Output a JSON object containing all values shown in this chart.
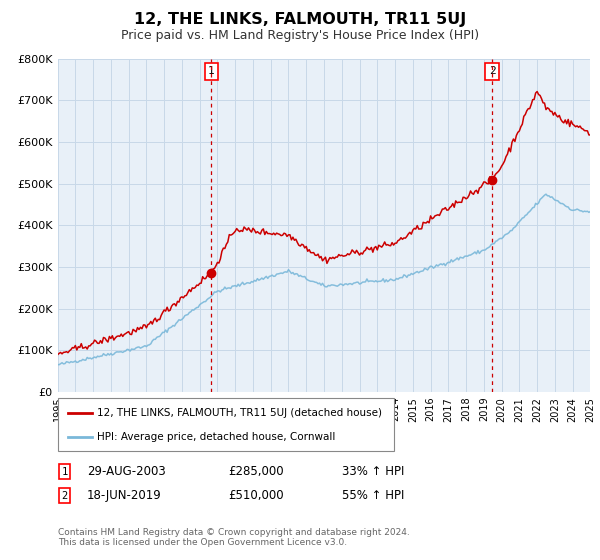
{
  "title": "12, THE LINKS, FALMOUTH, TR11 5UJ",
  "subtitle": "Price paid vs. HM Land Registry's House Price Index (HPI)",
  "footer": "Contains HM Land Registry data © Crown copyright and database right 2024.\nThis data is licensed under the Open Government Licence v3.0.",
  "legend_line1": "12, THE LINKS, FALMOUTH, TR11 5UJ (detached house)",
  "legend_line2": "HPI: Average price, detached house, Cornwall",
  "transaction1_date": "29-AUG-2003",
  "transaction1_price": 285000,
  "transaction1_pct": "33% ↑ HPI",
  "transaction2_date": "18-JUN-2019",
  "transaction2_price": 510000,
  "transaction2_pct": "55% ↑ HPI",
  "hpi_color": "#7ab8d9",
  "price_color": "#cc0000",
  "dot_color": "#cc0000",
  "vline_color": "#cc0000",
  "plot_bg": "#e8f0f8",
  "grid_color": "#c8d8e8",
  "ylim": [
    0,
    800000
  ],
  "yticks": [
    0,
    100000,
    200000,
    300000,
    400000,
    500000,
    600000,
    700000,
    800000
  ],
  "ytick_labels": [
    "£0",
    "£100K",
    "£200K",
    "£300K",
    "£400K",
    "£500K",
    "£600K",
    "£700K",
    "£800K"
  ],
  "transaction1_x": 2003.66,
  "transaction2_x": 2019.46
}
